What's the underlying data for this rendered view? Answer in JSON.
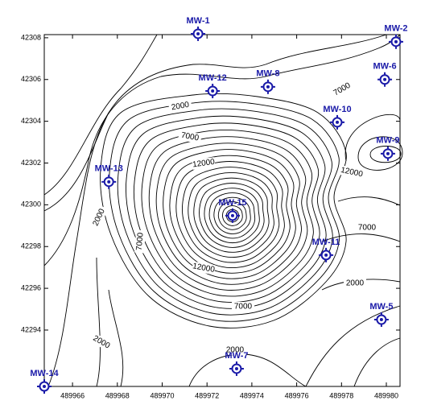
{
  "map": {
    "xlim": [
      489964.74,
      489980.61
    ],
    "ylim": [
      42291.3,
      42308.15
    ],
    "x_ticks": [
      489966,
      489968,
      489970,
      489972,
      489974,
      489976,
      489978,
      489980
    ],
    "y_ticks": [
      42294,
      42296,
      42298,
      42300,
      42302,
      42304,
      42306,
      42308
    ],
    "wells": [
      {
        "name": "MW-1",
        "x": 489971.6,
        "y": 42308.19
      },
      {
        "name": "MW-2",
        "x": 489980.43,
        "y": 42307.81
      },
      {
        "name": "MW-6",
        "x": 489979.93,
        "y": 42306.0
      },
      {
        "name": "MW-8",
        "x": 489974.72,
        "y": 42305.65
      },
      {
        "name": "MW-12",
        "x": 489972.25,
        "y": 42305.45
      },
      {
        "name": "MW-10",
        "x": 489977.81,
        "y": 42303.95
      },
      {
        "name": "MW-9",
        "x": 489980.07,
        "y": 42302.45
      },
      {
        "name": "MW-13",
        "x": 489967.62,
        "y": 42301.1
      },
      {
        "name": "MW-15",
        "x": 489973.14,
        "y": 42299.48
      },
      {
        "name": "MW-11",
        "x": 489977.31,
        "y": 42297.59
      },
      {
        "name": "MW-5",
        "x": 489979.78,
        "y": 42294.5
      },
      {
        "name": "MW-7",
        "x": 489973.32,
        "y": 42292.15
      },
      {
        "name": "MW-14",
        "x": 489964.74,
        "y": 42291.3
      }
    ],
    "contour_labels": [
      2000,
      7000,
      7000,
      12000,
      12000,
      2000,
      7000,
      12000,
      7000,
      2000,
      7000,
      2000,
      2000
    ]
  }
}
